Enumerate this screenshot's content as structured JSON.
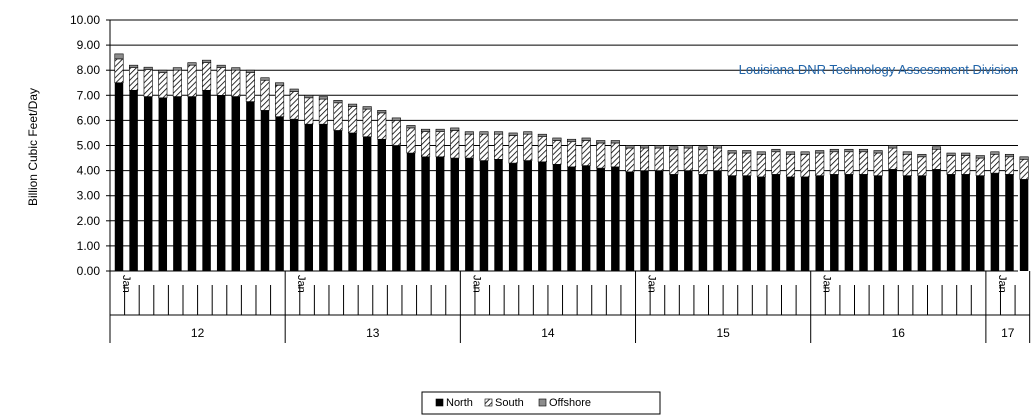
{
  "chart_data": {
    "type": "bar",
    "stacked": true,
    "ylabel": "Billion Cubic Feet/Day",
    "ylim": [
      0,
      10
    ],
    "y_ticks": [
      "0.00",
      "1.00",
      "2.00",
      "3.00",
      "4.00",
      "5.00",
      "6.00",
      "7.00",
      "8.00",
      "9.00",
      "10.00"
    ],
    "grid": true,
    "annotation": "Louisiana DNR Technology Assessment Division",
    "month_label": "Jan",
    "years": [
      "12",
      "13",
      "14",
      "15",
      "16",
      "17"
    ],
    "legend_position": "bottom",
    "series": [
      {
        "name": "North",
        "color": "#000000",
        "pattern": "solid"
      },
      {
        "name": "South",
        "color": "#ffffff",
        "pattern": "diagonal-hatch"
      },
      {
        "name": "Offshore",
        "color": "#999999",
        "pattern": "solid-gray"
      }
    ],
    "totals": [
      8.65,
      8.2,
      8.12,
      8.0,
      8.1,
      8.3,
      8.4,
      8.2,
      8.1,
      8.0,
      7.7,
      7.5,
      7.25,
      7.0,
      6.95,
      6.8,
      6.65,
      6.55,
      6.4,
      6.1,
      5.8,
      5.65,
      5.65,
      5.7,
      5.55,
      5.55,
      5.55,
      5.5,
      5.55,
      5.45,
      5.3,
      5.25,
      5.3,
      5.2,
      5.2,
      5.0,
      5.0,
      5.0,
      4.95,
      5.0,
      4.95,
      5.0,
      4.8,
      4.8,
      4.75,
      4.85,
      4.75,
      4.75,
      4.8,
      4.85,
      4.85,
      4.85,
      4.8,
      5.0,
      4.75,
      4.65,
      4.95,
      4.7,
      4.7,
      4.6,
      4.75,
      4.65,
      4.55
    ],
    "north": [
      7.5,
      7.2,
      6.95,
      6.9,
      6.95,
      6.95,
      7.2,
      7.0,
      6.95,
      6.75,
      6.4,
      6.15,
      6.05,
      5.85,
      5.85,
      5.6,
      5.5,
      5.35,
      5.25,
      5.0,
      4.7,
      4.55,
      4.55,
      4.5,
      4.5,
      4.4,
      4.45,
      4.3,
      4.4,
      4.35,
      4.25,
      4.15,
      4.2,
      4.1,
      4.15,
      3.95,
      4.0,
      4.0,
      3.85,
      4.0,
      3.85,
      4.0,
      3.8,
      3.8,
      3.75,
      3.85,
      3.75,
      3.75,
      3.8,
      3.85,
      3.85,
      3.85,
      3.8,
      4.05,
      3.8,
      3.8,
      4.05,
      3.85,
      3.85,
      3.8,
      3.9,
      3.85,
      3.65
    ],
    "offshore": [
      0.2,
      0.1,
      0.1,
      0.1,
      0.1,
      0.1,
      0.1,
      0.1,
      0.1,
      0.1,
      0.1,
      0.1,
      0.1,
      0.1,
      0.1,
      0.1,
      0.1,
      0.1,
      0.1,
      0.1,
      0.1,
      0.1,
      0.1,
      0.1,
      0.1,
      0.1,
      0.1,
      0.1,
      0.1,
      0.1,
      0.1,
      0.1,
      0.1,
      0.1,
      0.1,
      0.1,
      0.1,
      0.1,
      0.1,
      0.1,
      0.1,
      0.1,
      0.1,
      0.1,
      0.1,
      0.1,
      0.1,
      0.1,
      0.1,
      0.1,
      0.1,
      0.1,
      0.1,
      0.1,
      0.1,
      0.1,
      0.1,
      0.1,
      0.1,
      0.1,
      0.1,
      0.1,
      0.1
    ]
  }
}
